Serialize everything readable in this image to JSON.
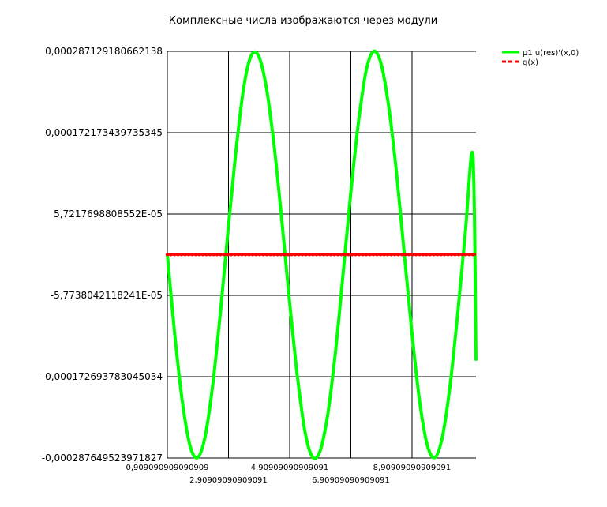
{
  "chart_data": {
    "type": "line",
    "title": "Комплексные числа изображаются через модули",
    "xlabel": "",
    "ylabel": "",
    "xlim": [
      0.909090909090909,
      11.0
    ],
    "ylim": [
      -0.000287649523971827,
      0.000287129180662138
    ],
    "yticks": [
      {
        "value": 0.000287129180662138,
        "label": "0,000287129180662138"
      },
      {
        "value": 0.000172173439735345,
        "label": "0,000172173439735345"
      },
      {
        "value": 5.7217698808552e-05,
        "label": "5,7217698808552E-05"
      },
      {
        "value": -5.7738042118241e-05,
        "label": "-5,7738042118241E-05"
      },
      {
        "value": -0.000172693783045034,
        "label": "-0,000172693783045034"
      },
      {
        "value": -0.000287649523971827,
        "label": "-0,000287649523971827"
      }
    ],
    "xticks": [
      {
        "value": 0.909090909090909,
        "label": "0,909090909090909",
        "row": 1
      },
      {
        "value": 2.909090909090909,
        "label": "2,90909090909091",
        "row": 2
      },
      {
        "value": 4.909090909090909,
        "label": "4,90909090909091",
        "row": 1
      },
      {
        "value": 6.909090909090909,
        "label": "6,90909090909091",
        "row": 2
      },
      {
        "value": 8.909090909090908,
        "label": "8,90909090909091",
        "row": 1
      }
    ],
    "grid": true,
    "legend_position": "top-right",
    "series": [
      {
        "name": "μ1 u(res)'(x,0)",
        "color": "#00ff00",
        "style": "solid",
        "x": [
          0.909,
          1.15,
          1.4,
          1.65,
          1.9,
          2.15,
          2.4,
          2.65,
          2.9,
          3.15,
          3.4,
          3.65,
          3.9,
          4.15,
          4.4,
          4.65,
          4.9,
          5.15,
          5.4,
          5.65,
          5.9,
          6.15,
          6.4,
          6.65,
          6.9,
          7.15,
          7.4,
          7.65,
          7.9,
          8.15,
          8.4,
          8.65,
          8.9,
          9.15,
          9.4,
          9.65,
          9.9,
          10.15,
          10.4,
          10.65,
          10.9
        ],
        "y": [
          0.0,
          -0.000112,
          -0.000208,
          -0.00027,
          -0.000287,
          -0.000256,
          -0.000182,
          -7.9e-05,
          3.6e-05,
          0.000145,
          0.000234,
          0.000281,
          0.00028,
          0.000235,
          0.000154,
          4.9e-05,
          -6.4e-05,
          -0.000168,
          -0.000248,
          -0.000286,
          -0.000278,
          -0.000227,
          -0.00014,
          -3e-05,
          8.4e-05,
          0.000184,
          0.000258,
          0.000287,
          0.000269,
          0.000208,
          0.000116,
          4e-06,
          -0.000108,
          -0.000205,
          -0.000268,
          -0.000287,
          -0.000258,
          -0.000186,
          -8.4e-05,
          3e-05,
          0.000139
        ],
        "end": {
          "x": 11.0,
          "y": -0.00015
        }
      },
      {
        "name": "q(x)",
        "color": "#ff0000",
        "style": "dashed-markers",
        "x": [
          0.909,
          11.0
        ],
        "y": [
          0.0,
          0.0
        ]
      }
    ]
  }
}
